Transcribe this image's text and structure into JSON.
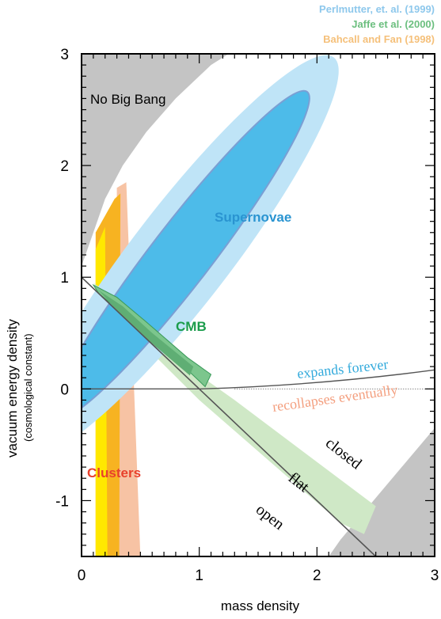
{
  "legend": {
    "perlmutter": "Perlmutter, et. al. (1999)",
    "jaffe": "Jaffe  et al.  (2000)",
    "bahcall": "Bahcall and Fan (1998)"
  },
  "colors": {
    "supernovae_outer": "#bfe4f7",
    "supernovae_inner": "#4dbbe9",
    "supernovae_edge": "#7a9fd4",
    "cmb_outer": "#cfe8c6",
    "cmb_inner": "#7cc68d",
    "cmb_core": "#5fae74",
    "clusters_outer": "#f7c3a4",
    "clusters_mid": "#f7b321",
    "clusters_inner": "#ffe800",
    "excluded": "#c4c4c4",
    "supernovae_text": "#2a94d1",
    "cmb_text": "#1a9c4b",
    "clusters_text": "#e8412c",
    "forever_text": "#33aadc",
    "recollapse_text": "#f4a080"
  },
  "chart_data": {
    "type": "area",
    "xlabel": "mass density",
    "ylabel": "vacuum energy density",
    "ylabel_sub": "(cosmological constant)",
    "xlim": [
      0,
      3
    ],
    "ylim": [
      -1.5,
      3
    ],
    "x_ticks": [
      "0",
      "1",
      "2",
      "3"
    ],
    "y_ticks": [
      "-1",
      "0",
      "1",
      "2",
      "3"
    ],
    "x_tick_values": [
      0,
      1,
      2,
      3
    ],
    "y_tick_values": [
      -1,
      0,
      1,
      2,
      3
    ],
    "regions": [
      {
        "name": "Supernovae",
        "kind": "ellipse-contours",
        "center": [
          0.85,
          1.2
        ],
        "axis_direction": [
          1,
          1.37
        ]
      },
      {
        "name": "CMB",
        "kind": "contour",
        "points": [
          [
            0.1,
            0.93
          ],
          [
            0.3,
            0.82
          ],
          [
            0.55,
            0.6
          ],
          [
            0.9,
            0.28
          ],
          [
            1.1,
            0.13
          ],
          [
            1.05,
            0.02
          ],
          [
            0.9,
            0.17
          ],
          [
            0.6,
            0.45
          ],
          [
            0.35,
            0.68
          ],
          [
            0.15,
            0.85
          ]
        ]
      },
      {
        "name": "Clusters",
        "kind": "band",
        "omega_m_range": [
          0.1,
          0.5
        ]
      },
      {
        "name": "No Big Bang",
        "kind": "excluded"
      }
    ],
    "lines": [
      {
        "name": "flat",
        "points": [
          [
            0,
            1
          ],
          [
            2.5,
            -1.5
          ]
        ]
      },
      {
        "name": "expands forever / recollapses eventually",
        "points": [
          [
            0,
            0
          ],
          [
            1,
            0
          ],
          [
            2,
            0.07
          ],
          [
            3,
            0.17
          ]
        ]
      }
    ],
    "annotations": {
      "no_big_bang": "No Big Bang",
      "supernovae": "Supernovae",
      "cmb": "CMB",
      "clusters": "Clusters",
      "expands_forever": "expands forever",
      "recollapses": "recollapses eventually",
      "closed": "closed",
      "flat": "flat",
      "open": "open"
    }
  }
}
